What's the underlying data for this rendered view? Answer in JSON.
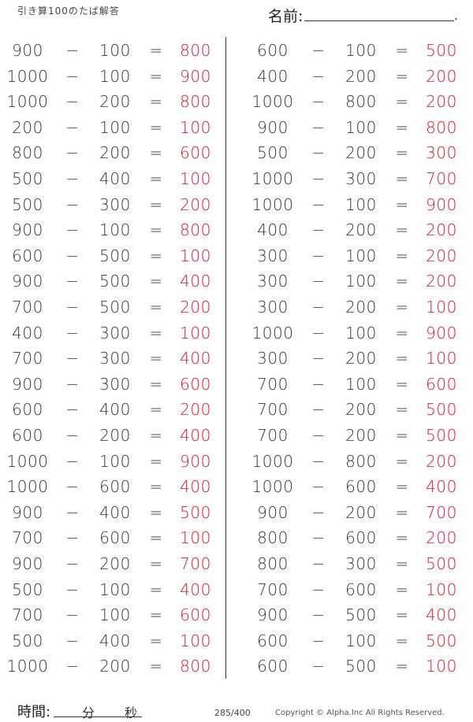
{
  "header": {
    "title": "引き算100のたば解答",
    "name_label": "名前:",
    "name_end": "."
  },
  "operators": {
    "minus": "−",
    "equals": "="
  },
  "left": [
    [
      "900",
      "100",
      "800"
    ],
    [
      "1000",
      "100",
      "900"
    ],
    [
      "1000",
      "200",
      "800"
    ],
    [
      "200",
      "100",
      "100"
    ],
    [
      "800",
      "200",
      "600"
    ],
    [
      "500",
      "400",
      "100"
    ],
    [
      "500",
      "300",
      "200"
    ],
    [
      "900",
      "100",
      "800"
    ],
    [
      "600",
      "500",
      "100"
    ],
    [
      "900",
      "500",
      "400"
    ],
    [
      "700",
      "500",
      "200"
    ],
    [
      "400",
      "300",
      "100"
    ],
    [
      "700",
      "300",
      "400"
    ],
    [
      "900",
      "300",
      "600"
    ],
    [
      "600",
      "400",
      "200"
    ],
    [
      "600",
      "200",
      "400"
    ],
    [
      "1000",
      "100",
      "900"
    ],
    [
      "1000",
      "600",
      "400"
    ],
    [
      "900",
      "400",
      "500"
    ],
    [
      "700",
      "600",
      "100"
    ],
    [
      "900",
      "200",
      "700"
    ],
    [
      "500",
      "100",
      "400"
    ],
    [
      "700",
      "100",
      "600"
    ],
    [
      "500",
      "400",
      "100"
    ],
    [
      "1000",
      "200",
      "800"
    ]
  ],
  "right": [
    [
      "600",
      "100",
      "500"
    ],
    [
      "400",
      "200",
      "200"
    ],
    [
      "1000",
      "800",
      "200"
    ],
    [
      "900",
      "100",
      "800"
    ],
    [
      "500",
      "200",
      "300"
    ],
    [
      "1000",
      "300",
      "700"
    ],
    [
      "1000",
      "100",
      "900"
    ],
    [
      "400",
      "200",
      "200"
    ],
    [
      "300",
      "100",
      "200"
    ],
    [
      "300",
      "100",
      "200"
    ],
    [
      "300",
      "200",
      "100"
    ],
    [
      "1000",
      "100",
      "900"
    ],
    [
      "300",
      "200",
      "100"
    ],
    [
      "700",
      "100",
      "600"
    ],
    [
      "700",
      "200",
      "500"
    ],
    [
      "700",
      "200",
      "500"
    ],
    [
      "1000",
      "800",
      "200"
    ],
    [
      "1000",
      "600",
      "400"
    ],
    [
      "900",
      "200",
      "700"
    ],
    [
      "800",
      "600",
      "200"
    ],
    [
      "800",
      "300",
      "500"
    ],
    [
      "700",
      "600",
      "100"
    ],
    [
      "900",
      "500",
      "400"
    ],
    [
      "600",
      "100",
      "500"
    ],
    [
      "600",
      "500",
      "100"
    ]
  ],
  "footer": {
    "time_label": "時間:",
    "minutes": "分",
    "seconds": "秒",
    "page": "285/400",
    "copyright": "Copyright ©  Alpha.Inc All Rights Reserved."
  },
  "colors": {
    "answer": "#e8102a"
  }
}
